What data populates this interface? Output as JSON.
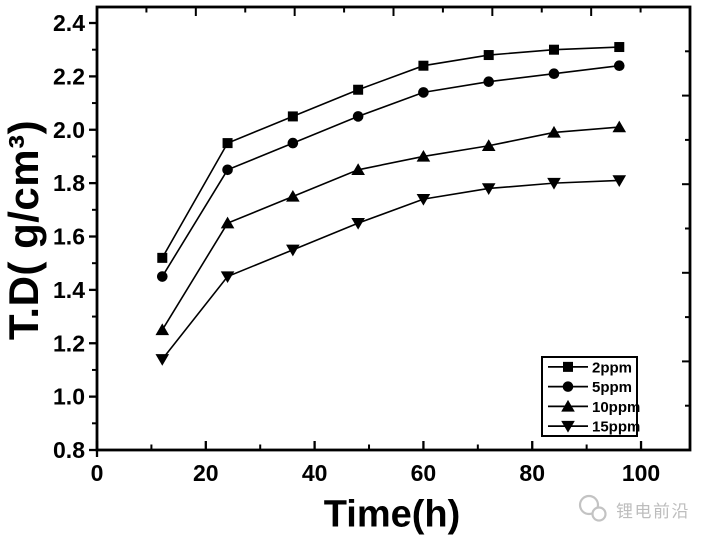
{
  "figure": {
    "background": "#ffffff",
    "frame_color": "#000000"
  },
  "chart_data": {
    "type": "line",
    "title": "",
    "xlabel": "Time(h)",
    "ylabel": "T.D( g/cm³)",
    "x": [
      12,
      24,
      36,
      48,
      60,
      72,
      84,
      96
    ],
    "series": [
      {
        "name": "2ppm",
        "marker": "square",
        "color": "#000000",
        "values": [
          1.52,
          1.95,
          2.05,
          2.15,
          2.24,
          2.28,
          2.3,
          2.31
        ]
      },
      {
        "name": "5ppm",
        "marker": "circle",
        "color": "#000000",
        "values": [
          1.45,
          1.85,
          1.95,
          2.05,
          2.14,
          2.18,
          2.21,
          2.24
        ]
      },
      {
        "name": "10ppm",
        "marker": "triangle-up",
        "color": "#000000",
        "values": [
          1.25,
          1.65,
          1.75,
          1.85,
          1.9,
          1.94,
          1.99,
          2.01
        ]
      },
      {
        "name": "15ppm",
        "marker": "triangle-down",
        "color": "#000000",
        "values": [
          1.14,
          1.45,
          1.55,
          1.65,
          1.74,
          1.78,
          1.8,
          1.81
        ]
      }
    ],
    "xlim": [
      0,
      109
    ],
    "ylim": [
      0.8,
      2.46
    ],
    "x_major_ticks": [
      0,
      20,
      40,
      60,
      80,
      100
    ],
    "x_minor_ticks": [
      10,
      30,
      50,
      70,
      90
    ],
    "y_major_ticks": [
      0.8,
      1.0,
      1.2,
      1.4,
      1.6,
      1.8,
      2.0,
      2.2,
      2.4
    ],
    "y_minor_ticks": [
      0.9,
      1.1,
      1.3,
      1.5,
      1.7,
      1.9,
      2.1,
      2.3
    ],
    "grid": false,
    "legend": {
      "position": "bottom-right",
      "entries": [
        "2ppm",
        "5ppm",
        "10ppm",
        "15ppm"
      ]
    }
  },
  "watermark": {
    "text": "锂电前沿",
    "icon": "wechat-logo-icon",
    "color": "#bdbdbd"
  }
}
